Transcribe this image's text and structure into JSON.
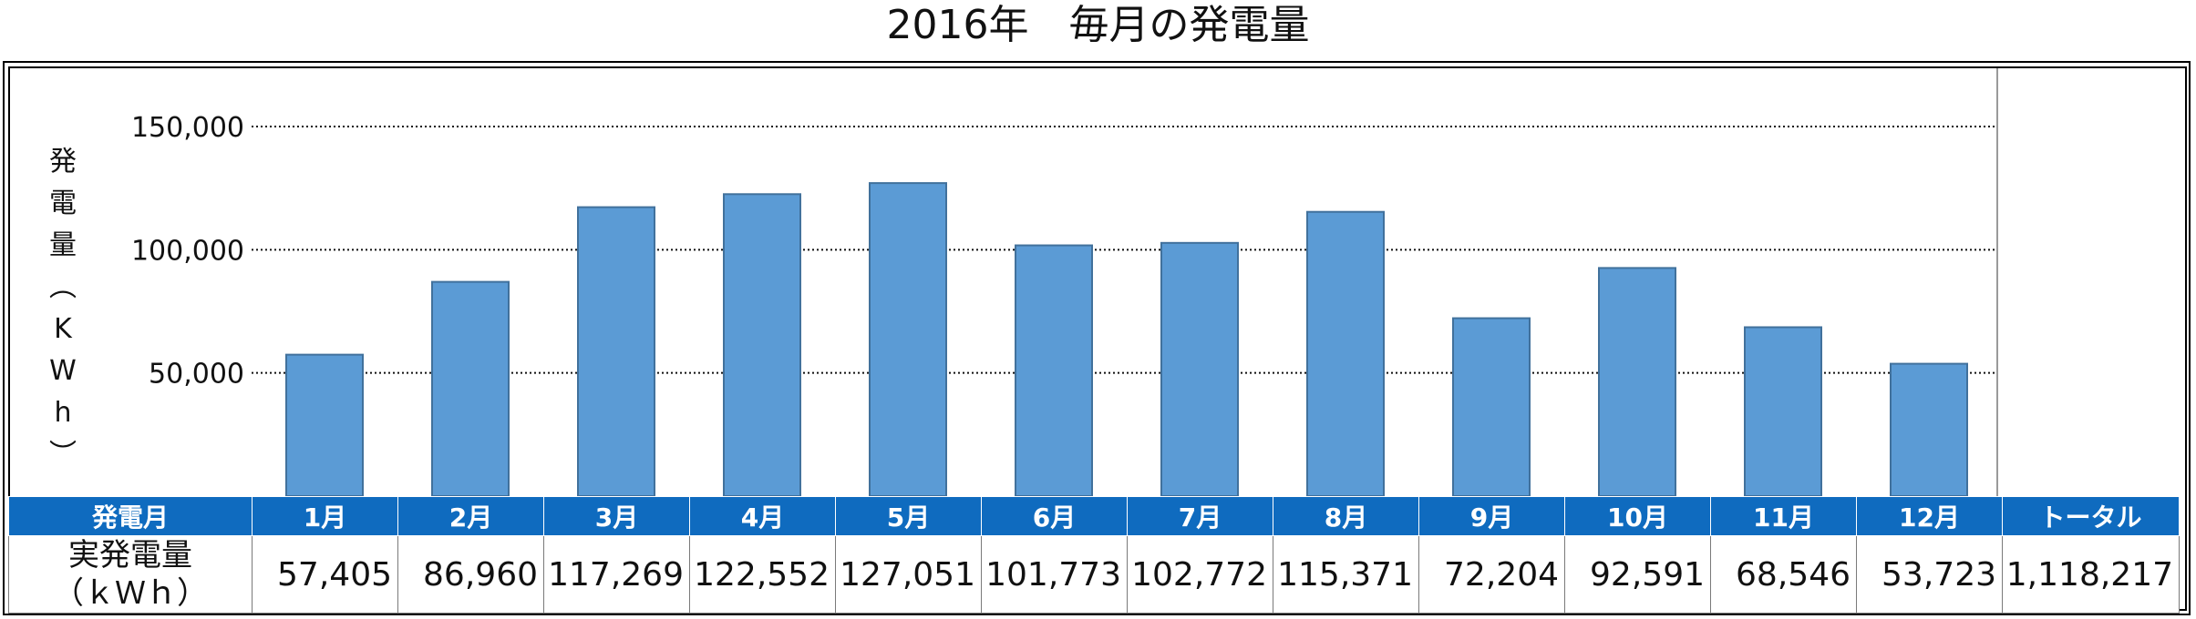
{
  "title": "2016年　毎月の発電量",
  "chart_data": {
    "type": "bar",
    "title": "2016年　毎月の発電量",
    "ylabel": [
      "発",
      "電",
      "量",
      "︵",
      "K",
      "W",
      "h",
      "︶"
    ],
    "ylim": [
      0,
      150000
    ],
    "yticks": [
      "50,000",
      "100,000",
      "150,000"
    ],
    "ytick_values": [
      50000,
      100000,
      150000
    ],
    "grid": "dotted horizontal",
    "bar_color": "#5b9bd5",
    "categories": [
      "1月",
      "2月",
      "3月",
      "4月",
      "5月",
      "6月",
      "7月",
      "8月",
      "9月",
      "10月",
      "11月",
      "12月"
    ],
    "values": [
      57405,
      86960,
      117269,
      122552,
      127051,
      101773,
      102772,
      115371,
      72204,
      92591,
      68546,
      53723
    ]
  },
  "table": {
    "header_label": "発電月",
    "total_header": "トータル",
    "row_label_line1": "実発電量",
    "row_label_line2": "（ｋＷｈ）",
    "values": [
      "57,405",
      "86,960",
      "117,269",
      "122,552",
      "127,051",
      "101,773",
      "102,772",
      "115,371",
      "72,204",
      "92,591",
      "68,546",
      "53,723"
    ],
    "total": "1,118,217",
    "header_color": "#0f6bbf"
  }
}
